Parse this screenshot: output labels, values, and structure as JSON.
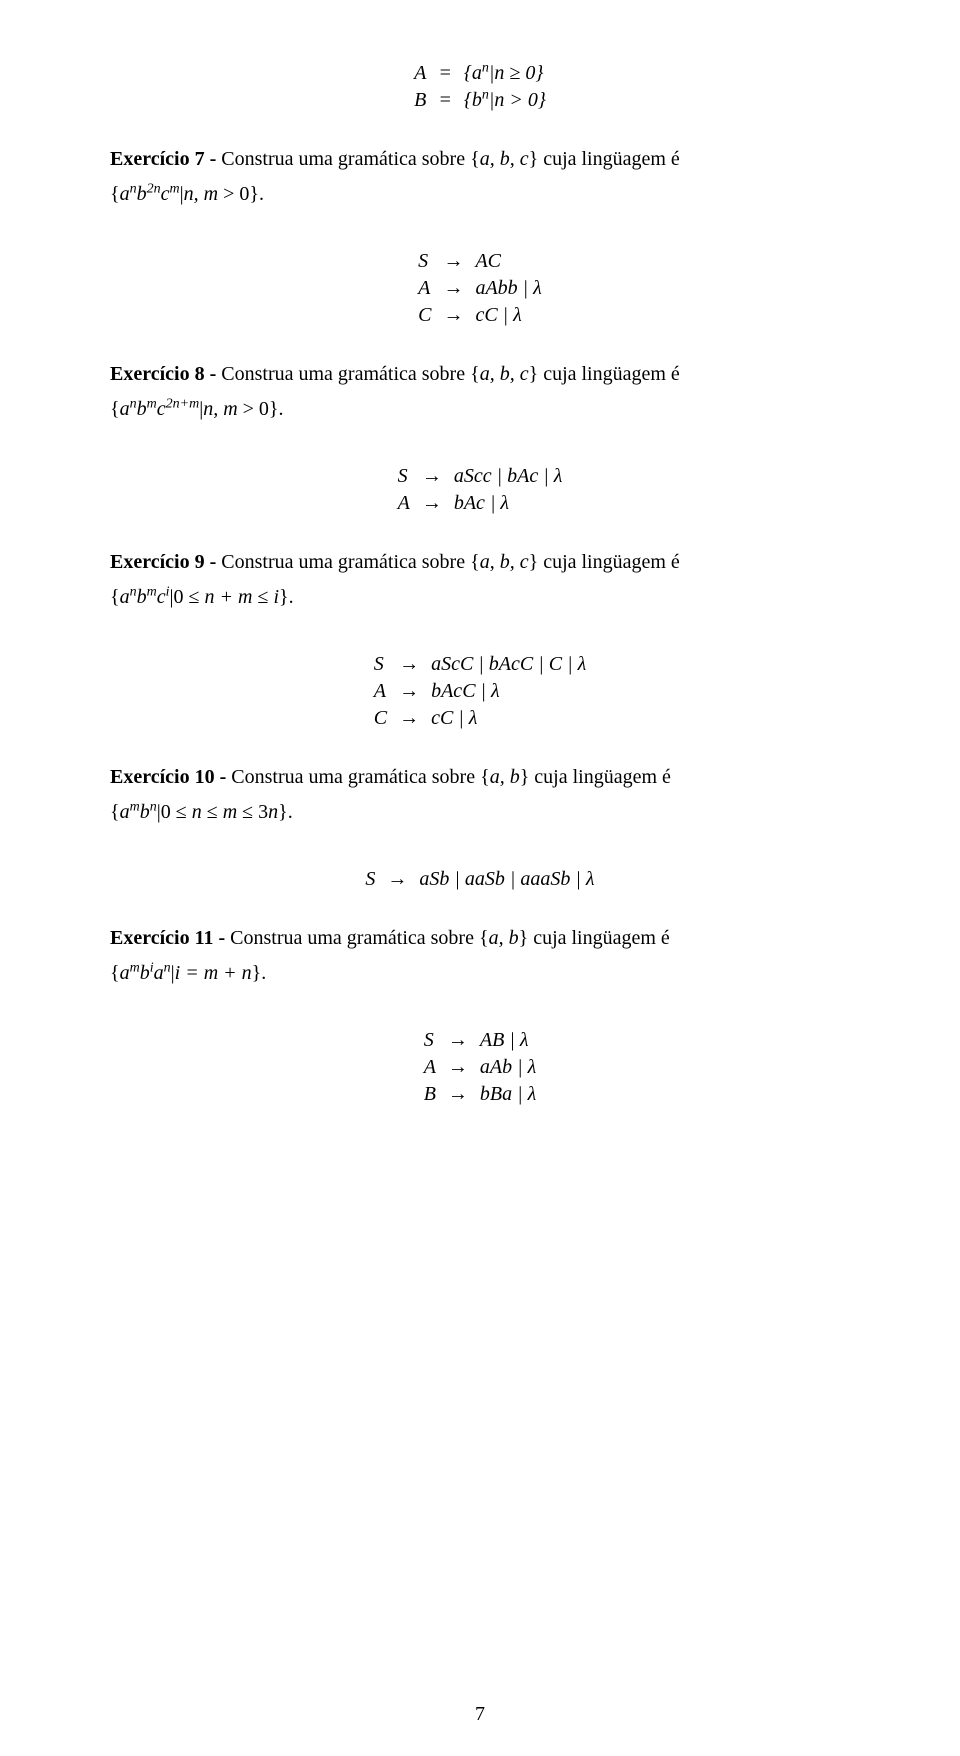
{
  "eq_top": {
    "r1": {
      "lhs": "A",
      "op": "=",
      "rhs": "{aⁿ|n ≥ 0}"
    },
    "r2": {
      "lhs": "B",
      "op": "=",
      "rhs": "{bⁿ|n > 0}"
    }
  },
  "ex7": {
    "title": "Exercício 7 -",
    "text_before_set": " Construa uma gramática sobre ",
    "alphabet": "{a, b, c}",
    "text_after_set": " cuja lingüagem é",
    "language": "{aⁿb²ⁿcᵐ|n, m > 0}."
  },
  "gr7": {
    "r1": {
      "lhs": "S",
      "arr": "→",
      "rhs": "AC"
    },
    "r2": {
      "lhs": "A",
      "arr": "→",
      "rhs": "aAbb | λ"
    },
    "r3": {
      "lhs": "C",
      "arr": "→",
      "rhs": "cC | λ"
    }
  },
  "ex8": {
    "title": "Exercício 8 -",
    "text_before_set": " Construa uma gramática sobre ",
    "alphabet": "{a, b, c}",
    "text_after_set": " cuja lingüagem é",
    "language": "{aⁿbᵐc²ⁿ⁺ᵐ|n, m > 0}."
  },
  "gr8": {
    "r1": {
      "lhs": "S",
      "arr": "→",
      "rhs": "aScc | bAc | λ"
    },
    "r2": {
      "lhs": "A",
      "arr": "→",
      "rhs": "bAc | λ"
    }
  },
  "ex9": {
    "title": "Exercício 9 -",
    "text_before_set": " Construa uma gramática sobre ",
    "alphabet": "{a, b, c}",
    "text_after_set": " cuja lingüagem é",
    "language": "{aⁿbᵐcⁱ|0 ≤ n + m ≤ i}."
  },
  "gr9": {
    "r1": {
      "lhs": "S",
      "arr": "→",
      "rhs": "aScC | bAcC | C | λ"
    },
    "r2": {
      "lhs": "A",
      "arr": "→",
      "rhs": "bAcC | λ"
    },
    "r3": {
      "lhs": "C",
      "arr": "→",
      "rhs": "cC | λ"
    }
  },
  "ex10": {
    "title": "Exercício 10 -",
    "text_before_set": " Construa uma gramática sobre ",
    "alphabet": "{a, b}",
    "text_after_set": " cuja lingüagem é",
    "language": "{aᵐbⁿ|0 ≤ n ≤ m ≤ 3n}."
  },
  "gr10": {
    "r1": {
      "lhs": "S",
      "arr": "→",
      "rhs": "aSb | aaSb | aaaSb | λ"
    }
  },
  "ex11": {
    "title": "Exercício 11 -",
    "text_before_set": " Construa uma gramática sobre ",
    "alphabet": "{a, b}",
    "text_after_set": " cuja lingüagem é",
    "language": "{aᵐbⁱaⁿ|i = m + n}."
  },
  "gr11": {
    "r1": {
      "lhs": "S",
      "arr": "→",
      "rhs": "AB | λ"
    },
    "r2": {
      "lhs": "A",
      "arr": "→",
      "rhs": "aAb | λ"
    },
    "r3": {
      "lhs": "B",
      "arr": "→",
      "rhs": "bBa | λ"
    }
  },
  "page_number": "7",
  "colors": {
    "text": "#000000",
    "bg": "#ffffff"
  },
  "typography": {
    "body_fontsize_pt": 15,
    "family": "Times New Roman"
  }
}
